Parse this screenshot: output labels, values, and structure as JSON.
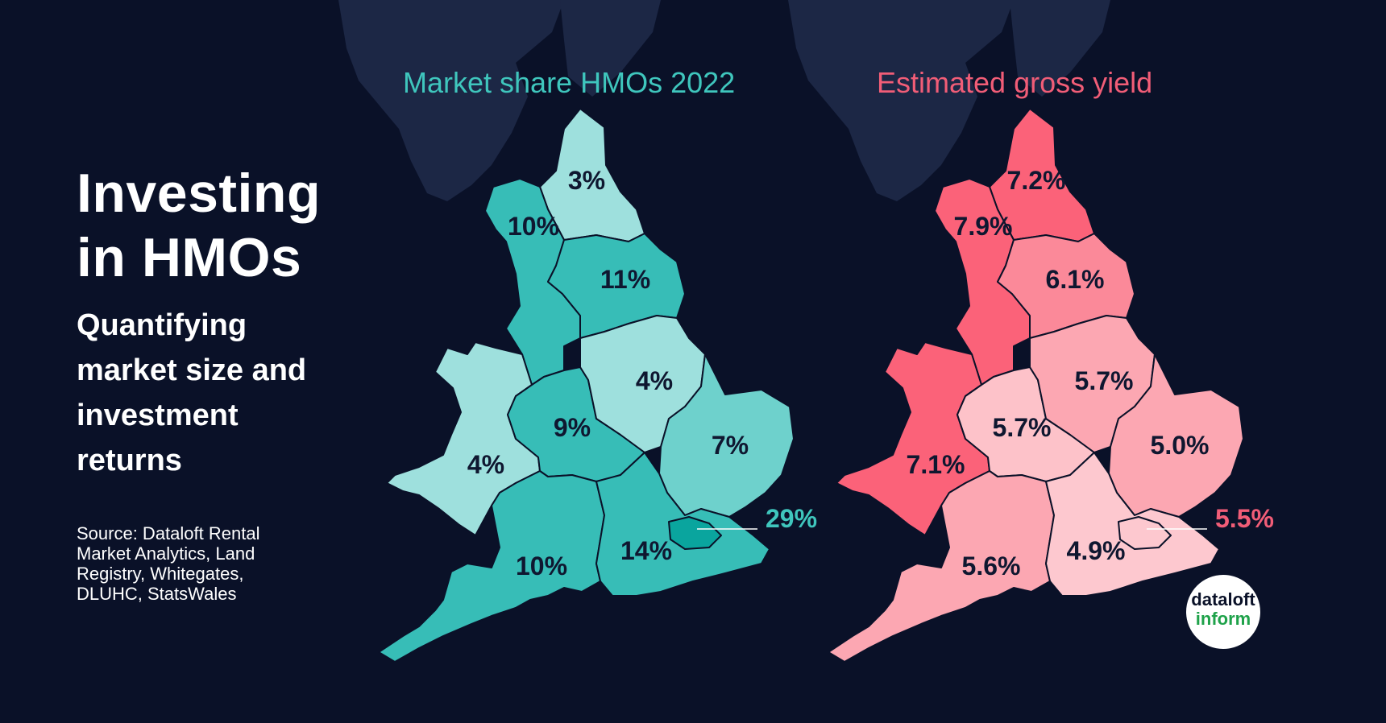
{
  "title": "Investing in HMOs",
  "subtitle": "Quantifying market size and investment returns",
  "source": "Source: Dataloft Rental Market Analytics, Land Registry, Whitegates, DLUHC, StatsWales",
  "logo": {
    "line1": "dataloft",
    "line2": "inform",
    "line1_color": "#0a1128",
    "line2_color": "#1fa24a"
  },
  "colors": {
    "background": "#0a1128",
    "scotland": "#1c2745",
    "left_title": "#3fc6bd",
    "right_title": "#f15d77",
    "label": "#0f1730"
  },
  "maps": [
    {
      "id": "market-share",
      "title": "Market share HMOs 2022",
      "regions": [
        {
          "key": "north-east",
          "value": "3%",
          "fill": "#9ee0dd"
        },
        {
          "key": "north-west",
          "value": "10%",
          "fill": "#37bdb7"
        },
        {
          "key": "yorkshire",
          "value": "11%",
          "fill": "#37bdb7"
        },
        {
          "key": "wales",
          "value": "4%",
          "fill": "#9ee0dd"
        },
        {
          "key": "west-midlands",
          "value": "9%",
          "fill": "#37bdb7"
        },
        {
          "key": "east-midlands",
          "value": "4%",
          "fill": "#9ee0dd"
        },
        {
          "key": "east",
          "value": "7%",
          "fill": "#6ed1cc"
        },
        {
          "key": "south-west",
          "value": "10%",
          "fill": "#37bdb7"
        },
        {
          "key": "south-east",
          "value": "14%",
          "fill": "#37bdb7"
        },
        {
          "key": "london",
          "value": "29%",
          "fill": "#0aa59e"
        }
      ]
    },
    {
      "id": "gross-yield",
      "title": "Estimated gross yield",
      "regions": [
        {
          "key": "north-east",
          "value": "7.2%",
          "fill": "#fb6279"
        },
        {
          "key": "north-west",
          "value": "7.9%",
          "fill": "#fb6279"
        },
        {
          "key": "yorkshire",
          "value": "6.1%",
          "fill": "#fb8999"
        },
        {
          "key": "wales",
          "value": "7.1%",
          "fill": "#fb6279"
        },
        {
          "key": "west-midlands",
          "value": "5.7%",
          "fill": "#fdc2c9"
        },
        {
          "key": "east-midlands",
          "value": "5.7%",
          "fill": "#fca7b2"
        },
        {
          "key": "east",
          "value": "5.0%",
          "fill": "#fca7b2"
        },
        {
          "key": "south-west",
          "value": "5.6%",
          "fill": "#fca7b2"
        },
        {
          "key": "south-east",
          "value": "4.9%",
          "fill": "#fdc8cf"
        },
        {
          "key": "london",
          "value": "5.5%",
          "fill": "#fdc8cf"
        }
      ]
    }
  ]
}
